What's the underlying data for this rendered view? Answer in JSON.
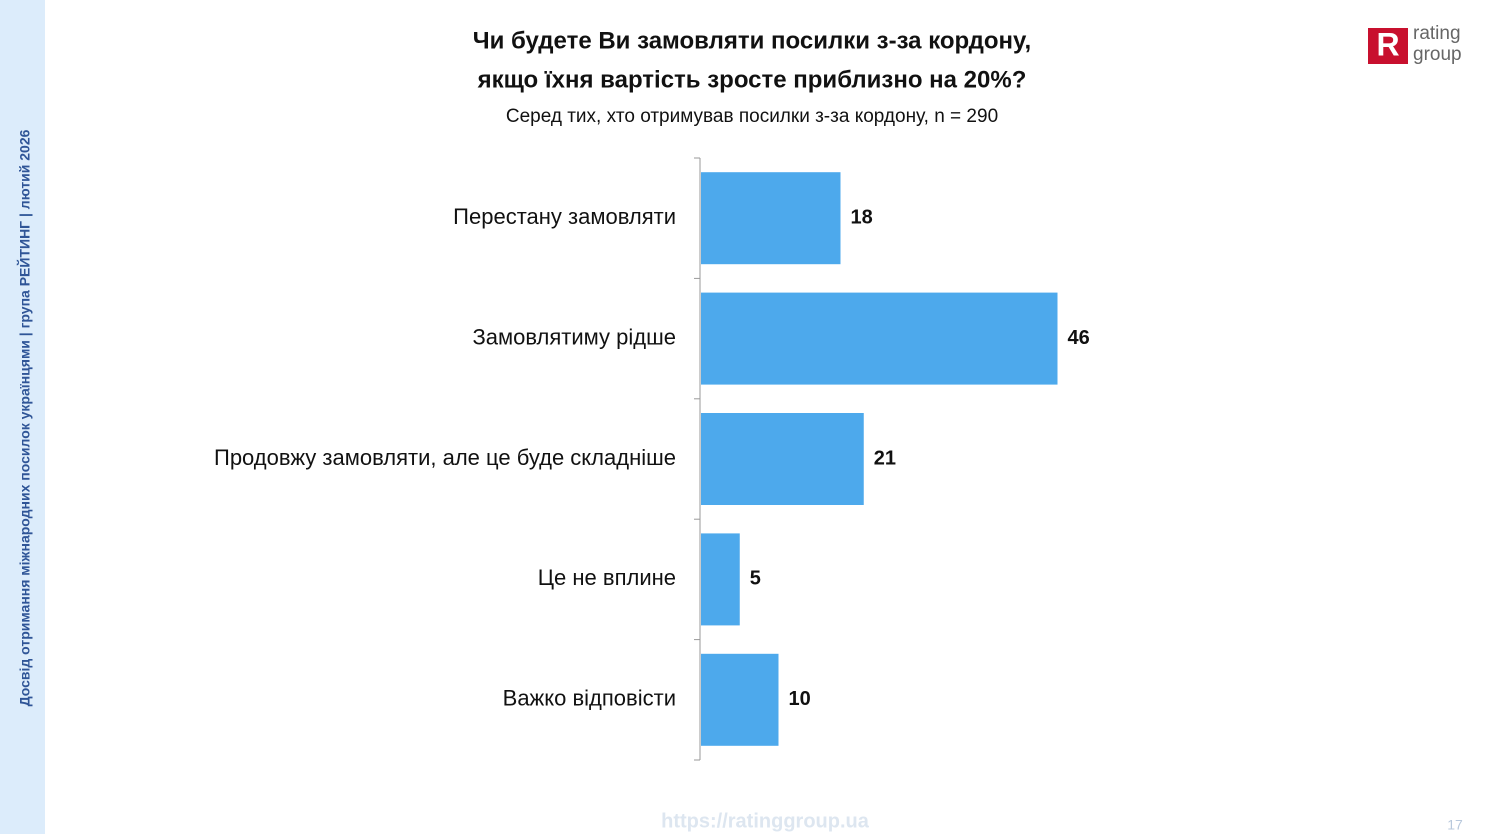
{
  "chart_data": {
    "type": "bar",
    "orientation": "horizontal",
    "title": [
      "Чи будете Ви замовляти посилки з-за кордону,",
      "якщо їхня вартість зросте приблизно на 20%?"
    ],
    "subtitle": "Серед тих, хто отримував посилки з-за кордону, n = 290",
    "categories": [
      "Перестану замовляти",
      "Замовлятиму рідше",
      "Продовжу замовляти, але це буде складніше",
      "Це не вплине",
      "Важко відповісти"
    ],
    "values": [
      18,
      46,
      21,
      5,
      10
    ],
    "color": "#4da9ec",
    "xlim": [
      0,
      60
    ]
  },
  "slide": {
    "side_text": "Досвід отримання міжнародних посилок українцями  |  група РЕЙТИНГ  |  лютий 2026",
    "logo": {
      "mark": "R",
      "lines": [
        "rating",
        "group"
      ]
    },
    "footer_url": "https://ratinggroup.ua",
    "page_number": "17"
  }
}
